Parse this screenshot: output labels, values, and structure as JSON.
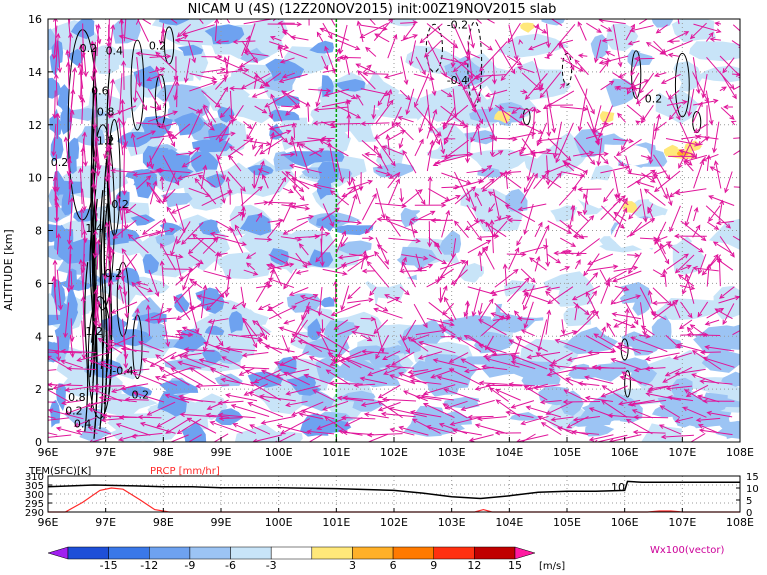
{
  "title": "NICAM U (4S) (12Z20NOV2015) init:00Z19NOV2015 slab",
  "chart_data": [
    {
      "type": "heatmap",
      "name": "cross-section",
      "xlabel": "",
      "ylabel": "ALTITUDE [km]",
      "xlim": [
        96,
        108
      ],
      "ylim": [
        0,
        16
      ],
      "x_ticks": [
        "96E",
        "97E",
        "98E",
        "99E",
        "100E",
        "101E",
        "102E",
        "103E",
        "104E",
        "105E",
        "106E",
        "107E",
        "108E"
      ],
      "y_ticks": [
        "0",
        "2",
        "4",
        "6",
        "8",
        "10",
        "12",
        "14",
        "16"
      ],
      "grid": true,
      "marker_line_lon": 101,
      "contour_labels": [
        {
          "text": "0.2",
          "lon": 96.7,
          "alt": 14.9
        },
        {
          "text": "0.4",
          "lon": 97.15,
          "alt": 14.8
        },
        {
          "text": "0.2",
          "lon": 97.9,
          "alt": 15.0
        },
        {
          "text": "0.6",
          "lon": 96.9,
          "alt": 13.3
        },
        {
          "text": "0.8",
          "lon": 97.0,
          "alt": 12.5
        },
        {
          "text": "1.2",
          "lon": 97.0,
          "alt": 11.4
        },
        {
          "text": "0.2",
          "lon": 96.2,
          "alt": 10.6
        },
        {
          "text": "0.2",
          "lon": 97.25,
          "alt": 9.0
        },
        {
          "text": "1.4",
          "lon": 96.8,
          "alt": 8.1
        },
        {
          "text": "-0.2",
          "lon": 97.1,
          "alt": 6.4
        },
        {
          "text": "1.2",
          "lon": 96.8,
          "alt": 4.2
        },
        {
          "text": "-0.4",
          "lon": 97.3,
          "alt": 2.7
        },
        {
          "text": "0.8",
          "lon": 96.5,
          "alt": 1.7
        },
        {
          "text": "0.2",
          "lon": 97.6,
          "alt": 1.8
        },
        {
          "text": "0.2",
          "lon": 96.45,
          "alt": 1.2
        },
        {
          "text": "0.4",
          "lon": 96.6,
          "alt": 0.7
        },
        {
          "text": "-0.2",
          "lon": 103.1,
          "alt": 15.8
        },
        {
          "text": "-0.4",
          "lon": 103.1,
          "alt": 13.7
        },
        {
          "text": "0.2",
          "lon": 106.5,
          "alt": 13.0
        }
      ]
    },
    {
      "type": "line",
      "name": "surface",
      "xlim": [
        96,
        108
      ],
      "left_axis": {
        "label": "TEM(SFC)[K]",
        "ticks": [
          "290",
          "295",
          "300",
          "305",
          "310"
        ],
        "ylim": [
          290,
          310
        ]
      },
      "right_axis": {
        "label": "PRCP [mm/hr]",
        "ticks": [
          "0",
          "5",
          "10",
          "15"
        ],
        "ylim": [
          0,
          15
        ]
      },
      "series": [
        {
          "name": "TEM(SFC)[K]",
          "color": "#000000",
          "x": [
            96,
            96.8,
            97.5,
            98,
            98.5,
            99,
            100,
            101,
            102,
            102.5,
            103,
            103.5,
            104,
            104.5,
            105,
            105.5,
            106,
            106.05,
            106.3,
            107,
            108
          ],
          "values": [
            304,
            305,
            304.5,
            304,
            304,
            303.5,
            303.5,
            303,
            302,
            300.5,
            298.5,
            297.5,
            299,
            301,
            301.5,
            301.5,
            302,
            307,
            306.5,
            306.5,
            306.5
          ]
        },
        {
          "name": "PRCP [mm/hr]",
          "color": "#ff2a2a",
          "x": [
            96,
            96.3,
            96.6,
            96.9,
            97.1,
            97.3,
            97.6,
            97.85,
            98.1,
            98.5,
            103.4,
            103.55,
            103.7,
            106.4,
            106.6,
            106.8,
            107,
            108
          ],
          "values": [
            0,
            0,
            4,
            9,
            10,
            9.5,
            5,
            1,
            0,
            0,
            0,
            1,
            0,
            0,
            0.4,
            0.4,
            0,
            0
          ]
        }
      ],
      "annotation": "10"
    },
    {
      "type": "colorbar",
      "name": "colorbar",
      "ticks": [
        "-15",
        "-12",
        "-9",
        "-6",
        "-3",
        "3",
        "6",
        "9",
        "12",
        "15"
      ],
      "unit": "[m/s]",
      "colors": [
        "#a020f0",
        "#1e4fd8",
        "#3a78e8",
        "#6ea2f0",
        "#9cc4f4",
        "#c8e4f8",
        "#ffffff",
        "#ffe87a",
        "#ffb028",
        "#ff7a00",
        "#ff3010",
        "#c00000",
        "#ff1aa0"
      ]
    }
  ],
  "legend_note": "Wx100(vector)",
  "colors": {
    "vector": "#e0159a",
    "marker_line": "#00a000",
    "prcp": "#ff2a2a",
    "legend_note": "#cc0099"
  }
}
